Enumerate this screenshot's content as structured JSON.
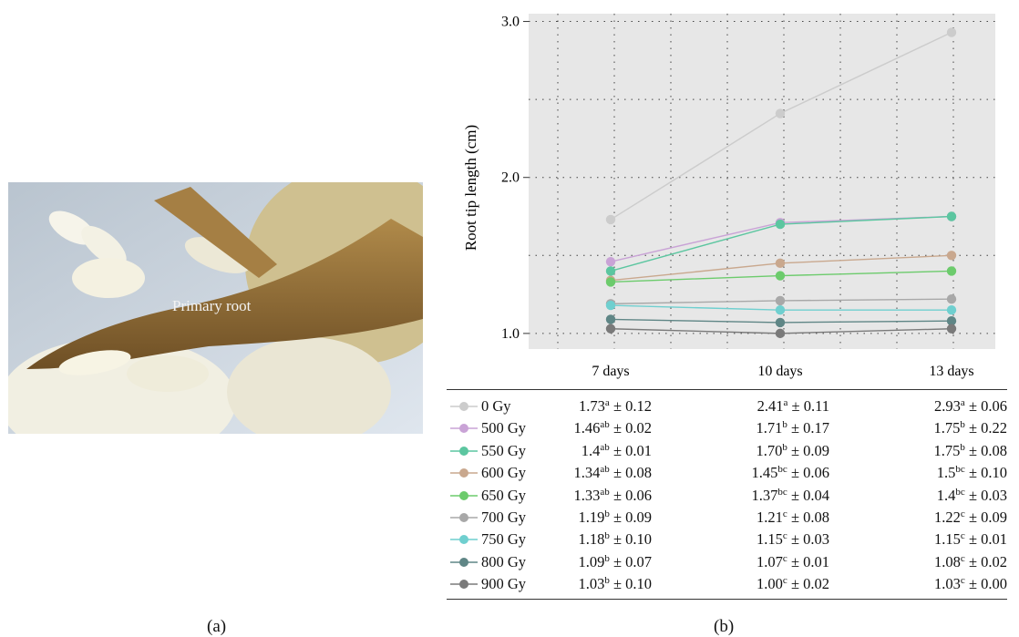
{
  "panels": {
    "a": "(a)",
    "b": "(b)"
  },
  "photo": {
    "label": "Primary root"
  },
  "chart_data": {
    "type": "line",
    "ylabel": "Root tip length (cm)",
    "categories": [
      "7 days",
      "10 days",
      "13 days"
    ],
    "yticks": [
      "1.0",
      "2.0",
      "3.0"
    ],
    "ylim": [
      0.9,
      3.05
    ],
    "grid": true,
    "series": [
      {
        "name": "0 Gy",
        "color": "#cccccc",
        "values": [
          1.73,
          2.41,
          2.93
        ],
        "cells": [
          {
            "v": "1.73",
            "sup": "a",
            "err": "± 0.12"
          },
          {
            "v": "2.41",
            "sup": "a",
            "err": "± 0.11"
          },
          {
            "v": "2.93",
            "sup": "a",
            "err": "± 0.06"
          }
        ]
      },
      {
        "name": "500 Gy",
        "color": "#c9a3d6",
        "values": [
          1.46,
          1.71,
          1.75
        ],
        "cells": [
          {
            "v": "1.46",
            "sup": "ab",
            "err": "± 0.02"
          },
          {
            "v": "1.71",
            "sup": "b",
            "err": "± 0.17"
          },
          {
            "v": "1.75",
            "sup": "b",
            "err": "± 0.22"
          }
        ]
      },
      {
        "name": "550 Gy",
        "color": "#5cc6a0",
        "values": [
          1.4,
          1.7,
          1.75
        ],
        "cells": [
          {
            "v": "1.4",
            "sup": "ab",
            "err": "± 0.01"
          },
          {
            "v": "1.70",
            "sup": "b",
            "err": "± 0.09"
          },
          {
            "v": "1.75",
            "sup": "b",
            "err": "± 0.08"
          }
        ]
      },
      {
        "name": "600 Gy",
        "color": "#c9a88e",
        "values": [
          1.34,
          1.45,
          1.5
        ],
        "cells": [
          {
            "v": "1.34",
            "sup": "ab",
            "err": "± 0.08"
          },
          {
            "v": "1.45",
            "sup": "bc",
            "err": "± 0.06"
          },
          {
            "v": "1.5",
            "sup": "bc",
            "err": "± 0.10"
          }
        ]
      },
      {
        "name": "650 Gy",
        "color": "#6ccb6c",
        "values": [
          1.33,
          1.37,
          1.4
        ],
        "cells": [
          {
            "v": "1.33",
            "sup": "ab",
            "err": "± 0.06"
          },
          {
            "v": "1.37",
            "sup": "bc",
            "err": "± 0.04"
          },
          {
            "v": "1.4",
            "sup": "bc",
            "err": "± 0.03"
          }
        ]
      },
      {
        "name": "700 Gy",
        "color": "#a8a8a8",
        "values": [
          1.19,
          1.21,
          1.22
        ],
        "cells": [
          {
            "v": "1.19",
            "sup": "b",
            "err": "± 0.09"
          },
          {
            "v": "1.21",
            "sup": "c",
            "err": "± 0.08"
          },
          {
            "v": "1.22",
            "sup": "c",
            "err": "± 0.09"
          }
        ]
      },
      {
        "name": "750 Gy",
        "color": "#6fcfcf",
        "values": [
          1.18,
          1.15,
          1.15
        ],
        "cells": [
          {
            "v": "1.18",
            "sup": "b",
            "err": "± 0.10"
          },
          {
            "v": "1.15",
            "sup": "c",
            "err": "± 0.03"
          },
          {
            "v": "1.15",
            "sup": "c",
            "err": "± 0.01"
          }
        ]
      },
      {
        "name": "800 Gy",
        "color": "#5f8686",
        "values": [
          1.09,
          1.07,
          1.08
        ],
        "cells": [
          {
            "v": "1.09",
            "sup": "b",
            "err": "± 0.07"
          },
          {
            "v": "1.07",
            "sup": "c",
            "err": "± 0.01"
          },
          {
            "v": "1.08",
            "sup": "c",
            "err": "± 0.02"
          }
        ]
      },
      {
        "name": "900 Gy",
        "color": "#7a7a7a",
        "values": [
          1.03,
          1.0,
          1.03
        ],
        "cells": [
          {
            "v": "1.03",
            "sup": "b",
            "err": "± 0.10"
          },
          {
            "v": "1.00",
            "sup": "c",
            "err": "± 0.02"
          },
          {
            "v": "1.03",
            "sup": "c",
            "err": "± 0.00"
          }
        ]
      }
    ]
  }
}
